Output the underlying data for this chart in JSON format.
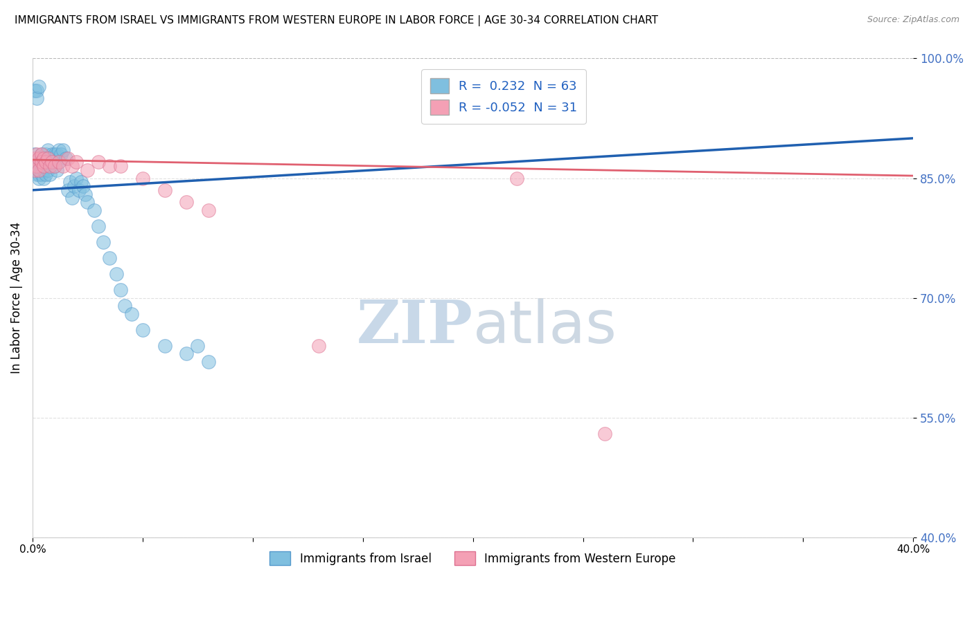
{
  "title": "IMMIGRANTS FROM ISRAEL VS IMMIGRANTS FROM WESTERN EUROPE IN LABOR FORCE | AGE 30-34 CORRELATION CHART",
  "source": "Source: ZipAtlas.com",
  "ylabel": "In Labor Force | Age 30-34",
  "legend_label1": "Immigrants from Israel",
  "legend_label2": "Immigrants from Western Europe",
  "R1": 0.232,
  "N1": 63,
  "R2": -0.052,
  "N2": 31,
  "color_blue": "#7fbfdf",
  "color_pink": "#f4a0b5",
  "color_blue_line": "#2060b0",
  "color_pink_line": "#e06070",
  "xlim": [
    0.0,
    0.4
  ],
  "ylim": [
    0.4,
    1.0
  ],
  "yticks": [
    0.4,
    0.55,
    0.7,
    0.85,
    1.0
  ],
  "ytick_labels": [
    "40.0%",
    "55.0%",
    "70.0%",
    "85.0%",
    "100.0%"
  ],
  "xticks": [
    0.0,
    0.05,
    0.1,
    0.15,
    0.2,
    0.25,
    0.3,
    0.35,
    0.4
  ],
  "xtick_labels": [
    "0.0%",
    "",
    "",
    "",
    "",
    "",
    "",
    "",
    "40.0%"
  ],
  "blue_x": [
    0.001,
    0.001,
    0.001,
    0.002,
    0.002,
    0.002,
    0.002,
    0.003,
    0.003,
    0.003,
    0.003,
    0.003,
    0.004,
    0.004,
    0.004,
    0.004,
    0.005,
    0.005,
    0.005,
    0.005,
    0.006,
    0.006,
    0.006,
    0.007,
    0.007,
    0.007,
    0.008,
    0.008,
    0.008,
    0.009,
    0.009,
    0.01,
    0.01,
    0.011,
    0.011,
    0.012,
    0.012,
    0.013,
    0.014,
    0.015,
    0.016,
    0.017,
    0.018,
    0.019,
    0.02,
    0.021,
    0.022,
    0.023,
    0.024,
    0.025,
    0.028,
    0.03,
    0.032,
    0.035,
    0.038,
    0.04,
    0.042,
    0.045,
    0.05,
    0.06,
    0.07,
    0.075,
    0.08
  ],
  "blue_y": [
    0.96,
    0.88,
    0.865,
    0.96,
    0.95,
    0.87,
    0.855,
    0.965,
    0.87,
    0.86,
    0.855,
    0.85,
    0.88,
    0.875,
    0.86,
    0.855,
    0.875,
    0.87,
    0.86,
    0.85,
    0.88,
    0.875,
    0.855,
    0.885,
    0.875,
    0.86,
    0.875,
    0.87,
    0.855,
    0.88,
    0.875,
    0.88,
    0.865,
    0.88,
    0.86,
    0.885,
    0.87,
    0.88,
    0.885,
    0.875,
    0.835,
    0.845,
    0.825,
    0.84,
    0.85,
    0.835,
    0.845,
    0.84,
    0.83,
    0.82,
    0.81,
    0.79,
    0.77,
    0.75,
    0.73,
    0.71,
    0.69,
    0.68,
    0.66,
    0.64,
    0.63,
    0.64,
    0.62
  ],
  "pink_x": [
    0.001,
    0.001,
    0.002,
    0.002,
    0.003,
    0.003,
    0.004,
    0.004,
    0.005,
    0.005,
    0.006,
    0.007,
    0.008,
    0.009,
    0.01,
    0.012,
    0.014,
    0.016,
    0.018,
    0.02,
    0.025,
    0.03,
    0.035,
    0.04,
    0.05,
    0.06,
    0.07,
    0.08,
    0.13,
    0.22,
    0.26
  ],
  "pink_y": [
    0.875,
    0.86,
    0.88,
    0.865,
    0.875,
    0.86,
    0.88,
    0.87,
    0.875,
    0.865,
    0.87,
    0.875,
    0.865,
    0.87,
    0.865,
    0.87,
    0.865,
    0.875,
    0.865,
    0.87,
    0.86,
    0.87,
    0.865,
    0.865,
    0.85,
    0.835,
    0.82,
    0.81,
    0.64,
    0.85,
    0.53
  ],
  "watermark_top": "ZIP",
  "watermark_bottom": "atlas",
  "watermark_color": "#c8d8e8"
}
